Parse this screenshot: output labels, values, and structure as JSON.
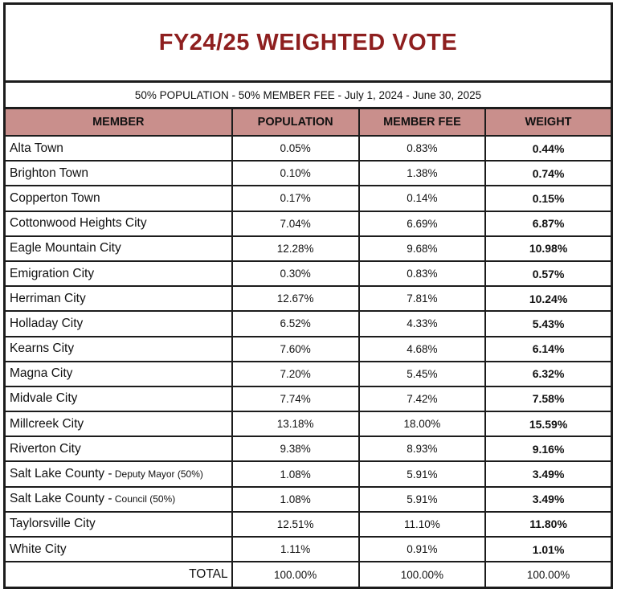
{
  "title": "FY24/25 WEIGHTED VOTE",
  "subtitle": "50% POPULATION - 50% MEMBER FEE - July 1, 2024 - June 30, 2025",
  "colors": {
    "title_color": "#8e1f1f",
    "header_bg": "#c98f8c",
    "border_color": "#1c1c1c"
  },
  "table": {
    "columns": [
      "MEMBER",
      "POPULATION",
      "MEMBER FEE",
      "WEIGHT"
    ],
    "rows": [
      {
        "member": "Alta Town",
        "member_small": "",
        "population": "0.05%",
        "member_fee": "0.83%",
        "weight": "0.44%"
      },
      {
        "member": "Brighton Town",
        "member_small": "",
        "population": "0.10%",
        "member_fee": "1.38%",
        "weight": "0.74%"
      },
      {
        "member": "Copperton Town",
        "member_small": "",
        "population": "0.17%",
        "member_fee": "0.14%",
        "weight": "0.15%"
      },
      {
        "member": "Cottonwood Heights City",
        "member_small": "",
        "population": "7.04%",
        "member_fee": "6.69%",
        "weight": "6.87%"
      },
      {
        "member": "Eagle Mountain City",
        "member_small": "",
        "population": "12.28%",
        "member_fee": "9.68%",
        "weight": "10.98%"
      },
      {
        "member": "Emigration City",
        "member_small": "",
        "population": "0.30%",
        "member_fee": "0.83%",
        "weight": "0.57%"
      },
      {
        "member": "Herriman City",
        "member_small": "",
        "population": "12.67%",
        "member_fee": "7.81%",
        "weight": "10.24%"
      },
      {
        "member": "Holladay City",
        "member_small": "",
        "population": "6.52%",
        "member_fee": "4.33%",
        "weight": "5.43%"
      },
      {
        "member": "Kearns City",
        "member_small": "",
        "population": "7.60%",
        "member_fee": "4.68%",
        "weight": "6.14%"
      },
      {
        "member": "Magna City",
        "member_small": "",
        "population": "7.20%",
        "member_fee": "5.45%",
        "weight": "6.32%"
      },
      {
        "member": "Midvale City",
        "member_small": "",
        "population": "7.74%",
        "member_fee": "7.42%",
        "weight": "7.58%"
      },
      {
        "member": "Millcreek City",
        "member_small": "",
        "population": "13.18%",
        "member_fee": "18.00%",
        "weight": "15.59%"
      },
      {
        "member": "Riverton City",
        "member_small": "",
        "population": "9.38%",
        "member_fee": "8.93%",
        "weight": "9.16%"
      },
      {
        "member": "Salt Lake County -",
        "member_small": "Deputy Mayor (50%)",
        "population": "1.08%",
        "member_fee": "5.91%",
        "weight": "3.49%"
      },
      {
        "member": "Salt Lake County -",
        "member_small": "Council (50%)",
        "population": "1.08%",
        "member_fee": "5.91%",
        "weight": "3.49%"
      },
      {
        "member": "Taylorsville City",
        "member_small": "",
        "population": "12.51%",
        "member_fee": "11.10%",
        "weight": "11.80%"
      },
      {
        "member": "White City",
        "member_small": "",
        "population": "1.11%",
        "member_fee": "0.91%",
        "weight": "1.01%"
      }
    ],
    "total": {
      "label": "TOTAL",
      "population": "100.00%",
      "member_fee": "100.00%",
      "weight": "100.00%"
    }
  }
}
